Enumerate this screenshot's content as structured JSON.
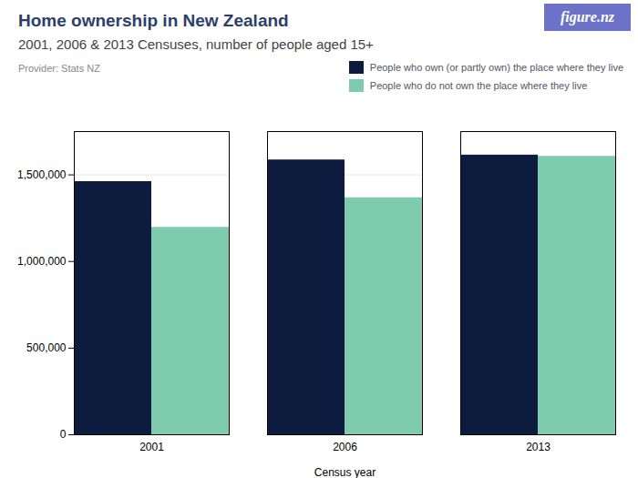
{
  "chart_data": {
    "type": "bar",
    "title": "Home ownership in New Zealand",
    "subtitle": "2001, 2006 & 2013 Censuses, number of people aged 15+",
    "annotations": [
      "Provider: Stats NZ",
      "figure.nz"
    ],
    "xlabel": "Census year",
    "categories": [
      "2001",
      "2006",
      "2013"
    ],
    "series": [
      {
        "name": "People who own (or partly own) the place where they live",
        "color": "#0d1b3e",
        "values": [
          1461000,
          1586000,
          1614000
        ]
      },
      {
        "name": "People who do not own the place where they live",
        "color": "#7ecbb0",
        "values": [
          1197000,
          1368000,
          1607000
        ]
      }
    ],
    "ylim": [
      0,
      1750000
    ],
    "yticks": [
      0,
      {
        "value": 500000,
        "label": "500,000"
      },
      {
        "value": 1000000,
        "label": "1,000,000"
      },
      {
        "value": 1500000,
        "label": "1,500,000"
      }
    ],
    "grid": true,
    "legend": "upper right",
    "badge_color": "#6b72c8"
  }
}
